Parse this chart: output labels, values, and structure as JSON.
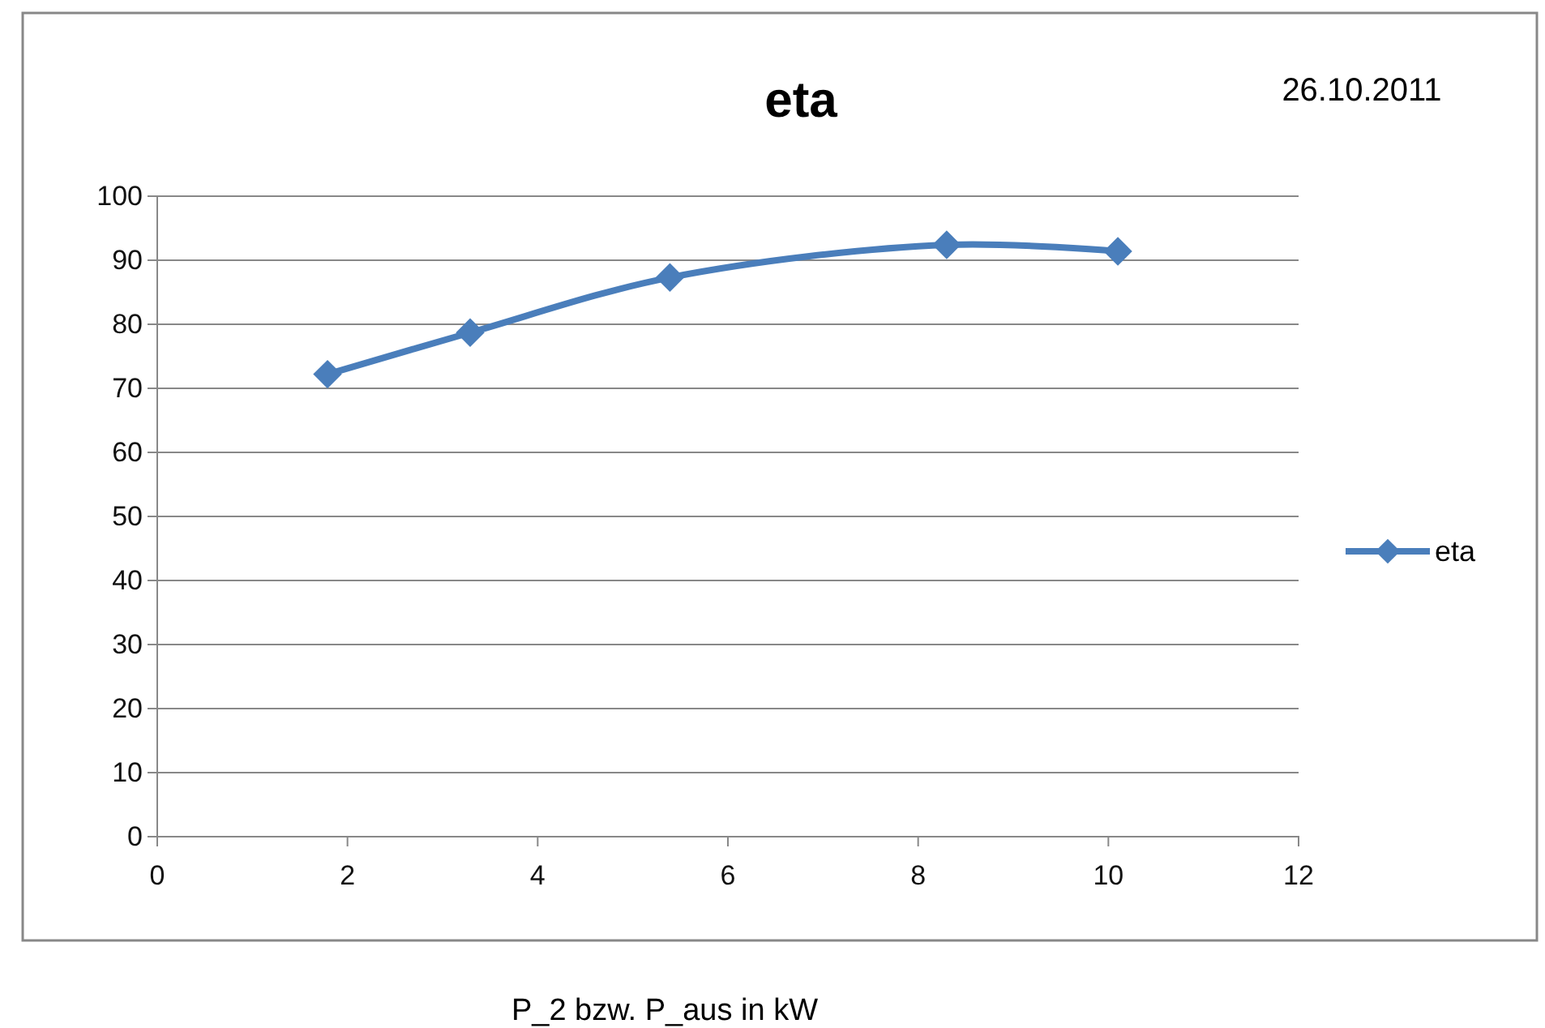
{
  "chart_data": {
    "type": "line",
    "title": "eta",
    "xlabel": "P_2 bzw. P_aus in kW",
    "annotations": [
      "26.10.2011"
    ],
    "x": [
      1.79,
      3.29,
      5.39,
      8.3,
      10.1
    ],
    "series": [
      {
        "name": "eta",
        "color": "#4a7ebb",
        "values": [
          72.2,
          78.7,
          87.3,
          92.4,
          91.4
        ]
      }
    ],
    "xlim": [
      0,
      12
    ],
    "xticks": [
      0,
      2,
      4,
      6,
      8,
      10,
      12
    ],
    "ylim": [
      0,
      100
    ],
    "yticks": [
      0,
      10,
      20,
      30,
      40,
      50,
      60,
      70,
      80,
      90,
      100
    ],
    "grid": "y",
    "legend": "right",
    "marker": "diamond",
    "line_style": "solid"
  }
}
